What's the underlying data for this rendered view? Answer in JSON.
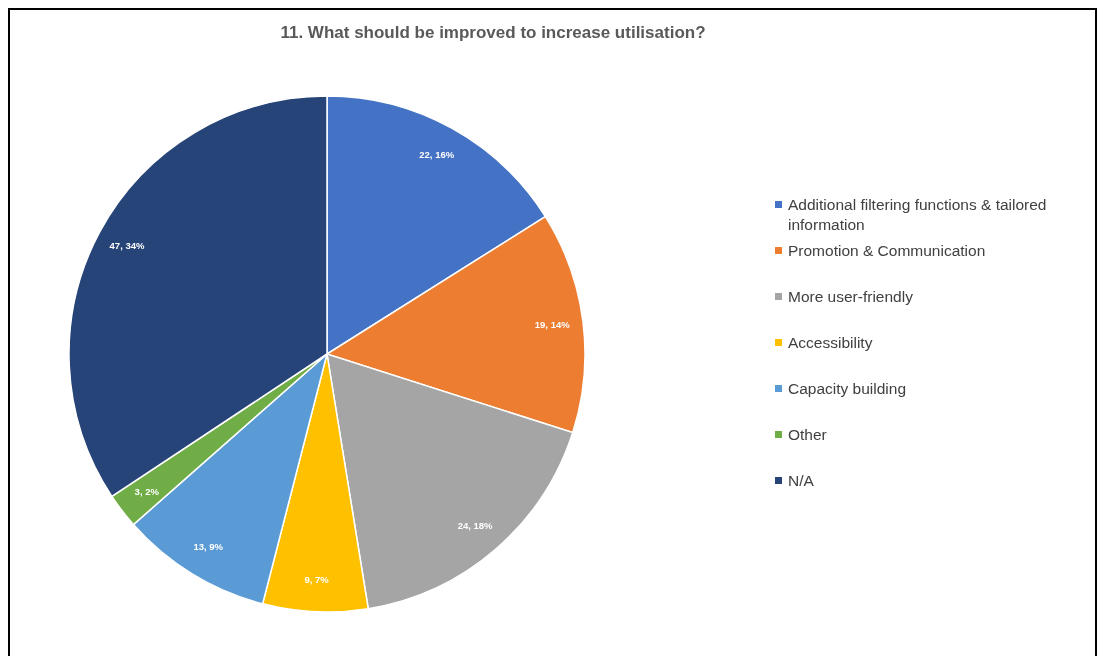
{
  "chart_data": {
    "type": "pie",
    "title": "11. What should be improved to increase utilisation?",
    "categories": [
      "Additional filtering functions & tailored information",
      "Promotion & Communication",
      "More user-friendly",
      "Accessibility",
      "Capacity building",
      "Other",
      "N/A"
    ],
    "values": [
      22,
      19,
      24,
      9,
      13,
      3,
      47
    ],
    "colors": [
      "#4472c4",
      "#ed7d31",
      "#a5a5a5",
      "#ffc000",
      "#5b9bd5",
      "#70ad47",
      "#264478"
    ],
    "value_labels": [
      "22, 16%",
      "19, 14%",
      "24, 18%",
      "9, 7%",
      "13, 9%",
      "3, 2%",
      "47, 34%"
    ],
    "legend": "right"
  }
}
